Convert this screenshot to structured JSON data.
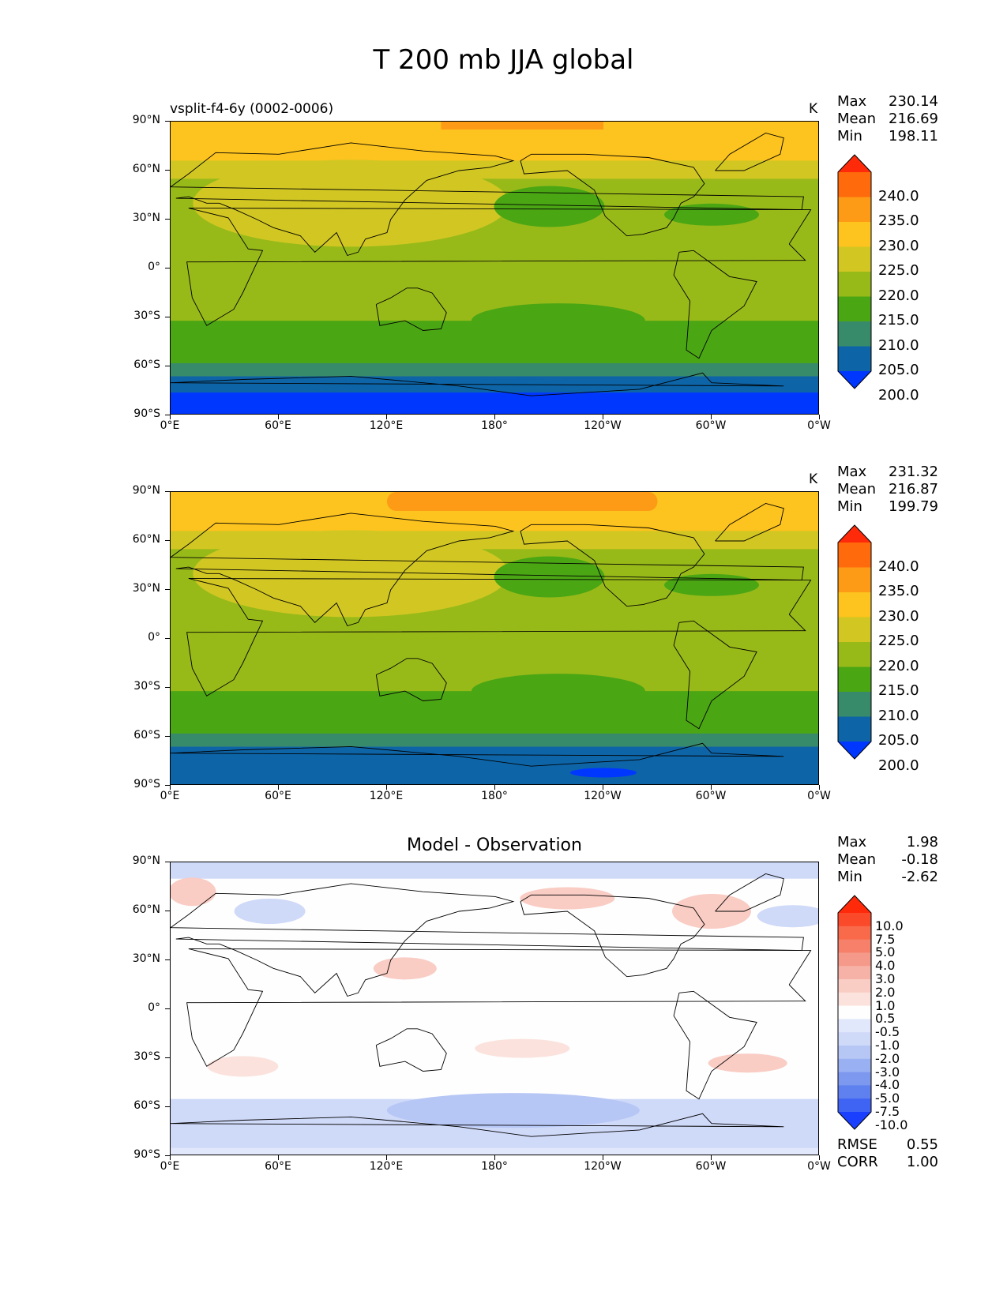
{
  "title": "T 200 mb JJA global",
  "panels": [
    {
      "id": "model",
      "left_title": "vsplit-f4-6y (0002-0006)",
      "center_title": "",
      "unit": "K",
      "stats": [
        {
          "label": "Max",
          "value": "230.14"
        },
        {
          "label": "Mean",
          "value": "216.69"
        },
        {
          "label": "Min",
          "value": "198.11"
        }
      ]
    },
    {
      "id": "obs",
      "left_title": "",
      "center_title": "",
      "unit": "K",
      "stats": [
        {
          "label": "Max",
          "value": "231.32"
        },
        {
          "label": "Mean",
          "value": "216.87"
        },
        {
          "label": "Min",
          "value": "199.79"
        }
      ]
    },
    {
      "id": "diff",
      "left_title": "",
      "center_title": "Model - Observation",
      "unit": "",
      "stats": [
        {
          "label": "Max",
          "value": "1.98"
        },
        {
          "label": "Mean",
          "value": "-0.18"
        },
        {
          "label": "Min",
          "value": "-2.62"
        }
      ],
      "extra_stats": [
        {
          "label": "RMSE",
          "value": "0.55"
        },
        {
          "label": "CORR",
          "value": "1.00"
        }
      ]
    }
  ],
  "y_ticks": [
    "90°N",
    "60°N",
    "30°N",
    "0°",
    "30°S",
    "60°S",
    "90°S"
  ],
  "x_ticks": [
    "0°E",
    "60°E",
    "120°E",
    "180°",
    "120°W",
    "60°W",
    "0°W"
  ],
  "colorbar_abs": {
    "levels": [
      "240.0",
      "235.0",
      "230.0",
      "225.0",
      "220.0",
      "215.0",
      "210.0",
      "205.0",
      "200.0"
    ],
    "colors": [
      "#ff2a0a",
      "#fe6a0c",
      "#fd9a16",
      "#fdc31e",
      "#d2c722",
      "#98ba19",
      "#4ba614",
      "#378a6a",
      "#0d65a8",
      "#0037ff"
    ]
  },
  "colorbar_diff": {
    "levels": [
      "10.0",
      "7.5",
      "5.0",
      "4.0",
      "3.0",
      "2.0",
      "1.0",
      "0.5",
      "-0.5",
      "-1.0",
      "-2.0",
      "-3.0",
      "-4.0",
      "-5.0",
      "-7.5",
      "-10.0"
    ],
    "colors": [
      "#ff2a0a",
      "#fb4a2a",
      "#f86a4a",
      "#f6806a",
      "#f59a8a",
      "#f6b2a6",
      "#f9ccc4",
      "#fbe2dd",
      "#fefefe",
      "#e2e8fb",
      "#cfd9f8",
      "#b6c6f5",
      "#99b0f2",
      "#7d98ef",
      "#5f80ef",
      "#3f63f3",
      "#1a3fff"
    ]
  },
  "chart_data": [
    {
      "type": "heatmap",
      "title": "T 200 mb JJA global",
      "subtitle": "vsplit-f4-6y (0002-0006)",
      "units": "K",
      "x_ticks": [
        "0°E",
        "60°E",
        "120°E",
        "180°",
        "120°W",
        "60°W",
        "0°W"
      ],
      "y_ticks": [
        "90°N",
        "60°N",
        "30°N",
        "0°",
        "30°S",
        "60°S",
        "90°S"
      ],
      "contour_levels": [
        200.0,
        205.0,
        210.0,
        215.0,
        220.0,
        225.0,
        230.0,
        235.0,
        240.0
      ],
      "stats": {
        "max": 230.14,
        "mean": 216.69,
        "min": 198.11
      }
    },
    {
      "type": "heatmap",
      "units": "K",
      "x_ticks": [
        "0°E",
        "60°E",
        "120°E",
        "180°",
        "120°W",
        "60°W",
        "0°W"
      ],
      "y_ticks": [
        "90°N",
        "60°N",
        "30°N",
        "0°",
        "30°S",
        "60°S",
        "90°S"
      ],
      "contour_levels": [
        200.0,
        205.0,
        210.0,
        215.0,
        220.0,
        225.0,
        230.0,
        235.0,
        240.0
      ],
      "stats": {
        "max": 231.32,
        "mean": 216.87,
        "min": 199.79
      }
    },
    {
      "type": "heatmap",
      "title": "Model - Observation",
      "x_ticks": [
        "0°E",
        "60°E",
        "120°E",
        "180°",
        "120°W",
        "60°W",
        "0°W"
      ],
      "y_ticks": [
        "90°N",
        "60°N",
        "30°N",
        "0°",
        "30°S",
        "60°S",
        "90°S"
      ],
      "contour_levels": [
        -10.0,
        -7.5,
        -5.0,
        -4.0,
        -3.0,
        -2.0,
        -1.0,
        -0.5,
        0.5,
        1.0,
        2.0,
        3.0,
        4.0,
        5.0,
        7.5,
        10.0
      ],
      "stats": {
        "max": 1.98,
        "mean": -0.18,
        "min": -2.62,
        "rmse": 0.55,
        "corr": 1.0
      }
    }
  ]
}
